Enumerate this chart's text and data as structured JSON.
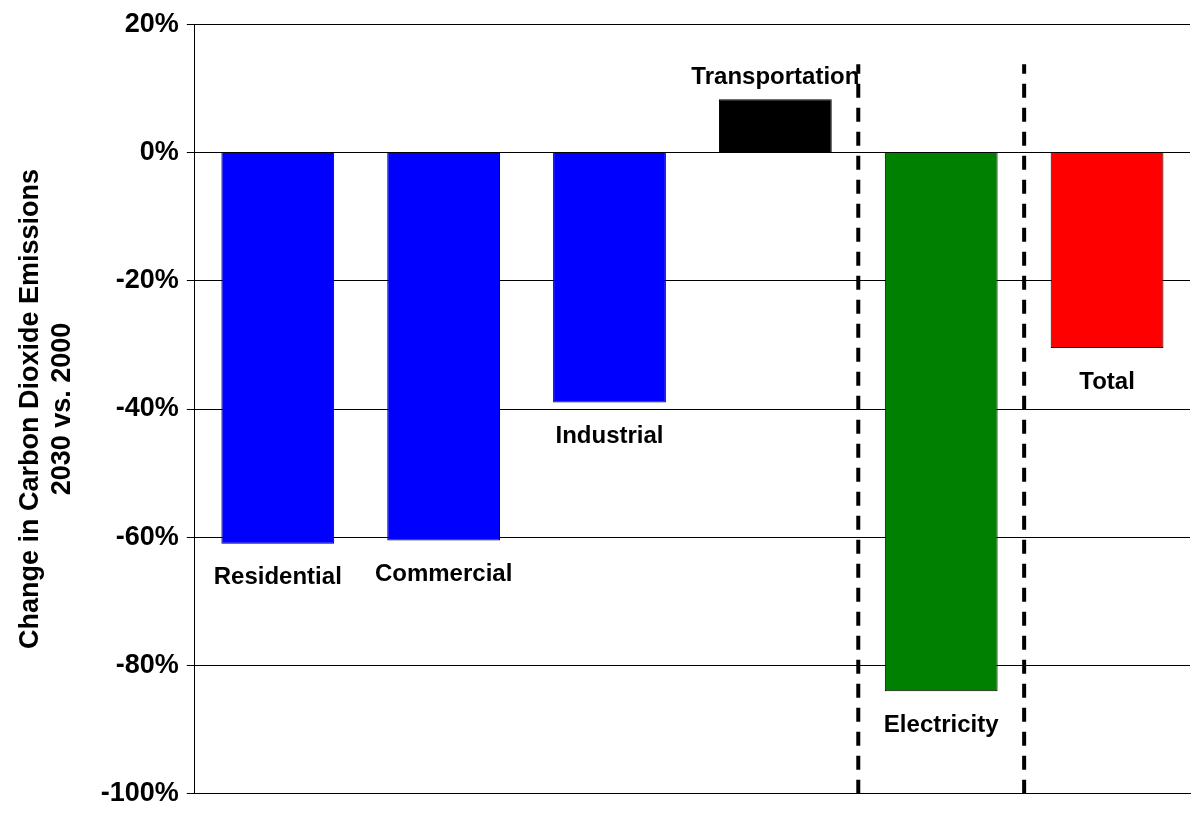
{
  "chart_data": {
    "type": "bar",
    "ylabel": "Change in Carbon Dioxide Emissions\n2030 vs. 2000",
    "categories": [
      "Residential",
      "Commercial",
      "Industrial",
      "Transportation",
      "Electricity",
      "Total"
    ],
    "values": [
      -61,
      -60.5,
      -39,
      8.3,
      -84,
      -30.5
    ],
    "colors": [
      "#0000ff",
      "#0000ff",
      "#0000ff",
      "#000000",
      "#008000",
      "#ff0000"
    ],
    "ylim": [
      -100,
      20
    ],
    "yticks": [
      {
        "value": -100,
        "label": "-100%"
      },
      {
        "value": -80,
        "label": "-80%"
      },
      {
        "value": -60,
        "label": "-60%"
      },
      {
        "value": -40,
        "label": "-40%"
      },
      {
        "value": -20,
        "label": "-20%"
      },
      {
        "value": 0,
        "label": "0%"
      },
      {
        "value": 20,
        "label": "20%"
      }
    ],
    "grid": "y",
    "legend": false
  }
}
